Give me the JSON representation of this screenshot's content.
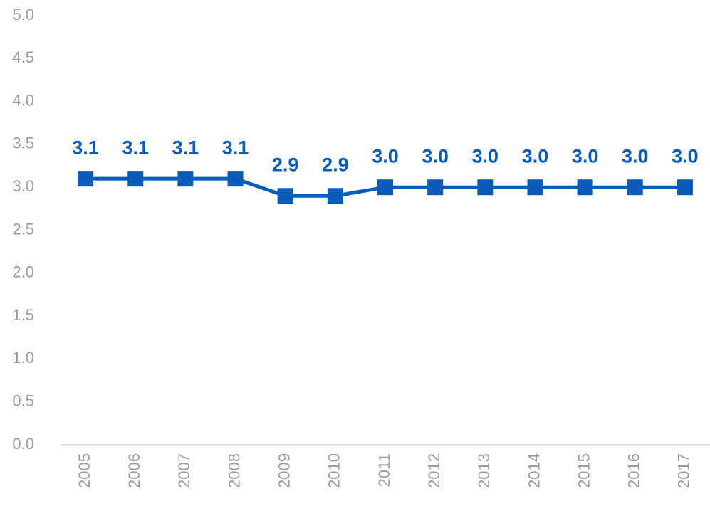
{
  "chart_data": {
    "type": "line",
    "categories": [
      "2005",
      "2006",
      "2007",
      "2008",
      "2009",
      "2010",
      "2011",
      "2012",
      "2013",
      "2014",
      "2015",
      "2016",
      "2017"
    ],
    "values": [
      3.1,
      3.1,
      3.1,
      3.1,
      2.9,
      2.9,
      3.0,
      3.0,
      3.0,
      3.0,
      3.0,
      3.0,
      3.0
    ],
    "value_labels": [
      "3.1",
      "3.1",
      "3.1",
      "3.1",
      "2.9",
      "2.9",
      "3.0",
      "3.0",
      "3.0",
      "3.0",
      "3.0",
      "3.0",
      "3.0"
    ],
    "color": "#0a5cb8",
    "ylim": [
      0,
      5
    ],
    "yticks": [
      {
        "value": 0,
        "label": "0.0"
      },
      {
        "value": 0.5,
        "label": "0.5"
      },
      {
        "value": 1,
        "label": "1.0"
      },
      {
        "value": 1.5,
        "label": "1.5"
      },
      {
        "value": 2,
        "label": "2.0"
      },
      {
        "value": 2.5,
        "label": "2.5"
      },
      {
        "value": 3,
        "label": "3.0"
      },
      {
        "value": 3.5,
        "label": "3.5"
      },
      {
        "value": 4,
        "label": "4.0"
      },
      {
        "value": 4.5,
        "label": "4.5"
      },
      {
        "value": 5,
        "label": "5.0"
      }
    ],
    "grid": false
  }
}
